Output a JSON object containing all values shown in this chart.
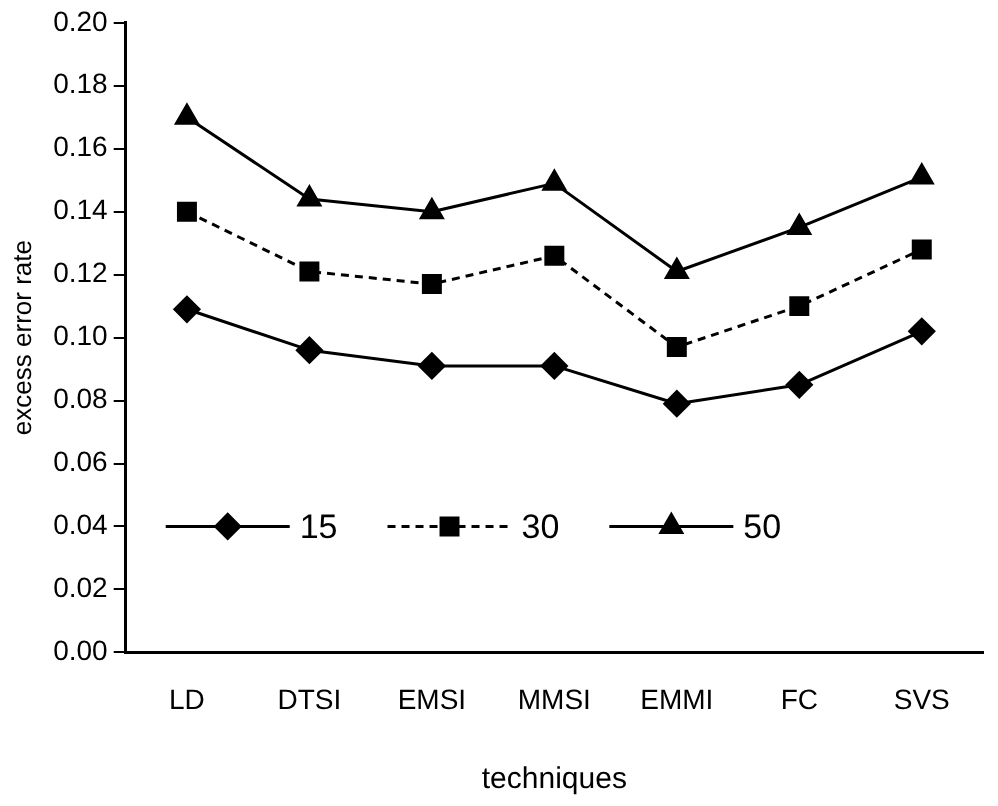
{
  "chart_data": {
    "type": "line",
    "xlabel": "techniques",
    "ylabel": "excess error rate",
    "categories": [
      "LD",
      "DTSI",
      "EMSI",
      "MMSI",
      "EMMI",
      "FC",
      "SVS"
    ],
    "series": [
      {
        "name": "15",
        "color": "#000000",
        "marker": "diamond",
        "line_style": "solid",
        "values": [
          0.109,
          0.096,
          0.091,
          0.091,
          0.079,
          0.085,
          0.102
        ]
      },
      {
        "name": "30",
        "color": "#000000",
        "marker": "square",
        "line_style": "dashed",
        "values": [
          0.14,
          0.121,
          0.117,
          0.126,
          0.097,
          0.11,
          0.128
        ]
      },
      {
        "name": "50",
        "color": "#000000",
        "marker": "triangle",
        "line_style": "solid",
        "values": [
          0.17,
          0.144,
          0.14,
          0.149,
          0.121,
          0.135,
          0.151
        ]
      }
    ],
    "ylim": [
      0,
      0.2
    ],
    "yticks": [
      {
        "value": 0,
        "label": "0.00"
      },
      {
        "value": 0.02,
        "label": "0.02"
      },
      {
        "value": 0.04,
        "label": "0.04"
      },
      {
        "value": 0.06,
        "label": "0.06"
      },
      {
        "value": 0.08,
        "label": "0.08"
      },
      {
        "value": 0.1,
        "label": "0.10"
      },
      {
        "value": 0.12,
        "label": "0.12"
      },
      {
        "value": 0.14,
        "label": "0.14"
      },
      {
        "value": 0.16,
        "label": "0.16"
      },
      {
        "value": 0.18,
        "label": "0.18"
      },
      {
        "value": 0.2,
        "label": "0.20"
      }
    ],
    "grid": false,
    "legend": "bottom"
  }
}
